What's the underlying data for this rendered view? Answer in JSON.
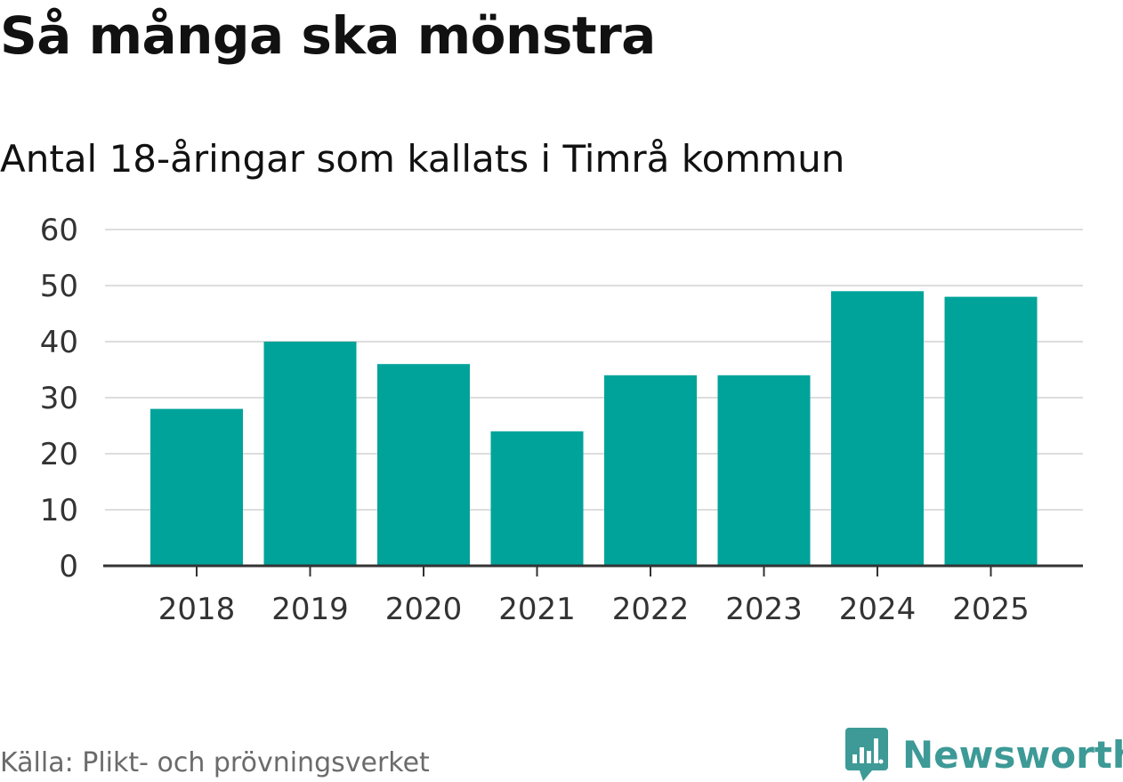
{
  "title": "Så många ska mönstra",
  "subtitle": "Antal 18-åringar som kallats i Timrå kommun",
  "source": "Källa: Plikt- och prövningsverket",
  "brand": {
    "name": "Newsworthy",
    "icon": "newsworthy-logo-icon"
  },
  "colors": {
    "bar": "#00a39a",
    "grid": "#dddddd",
    "axis": "#333333",
    "brand": "#3d9a96"
  },
  "chart_data": {
    "type": "bar",
    "title": "Så många ska mönstra",
    "subtitle": "Antal 18-åringar som kallats i Timrå kommun",
    "xlabel": "",
    "ylabel": "",
    "categories": [
      "2018",
      "2019",
      "2020",
      "2021",
      "2022",
      "2023",
      "2024",
      "2025"
    ],
    "values": [
      28,
      40,
      36,
      24,
      34,
      34,
      49,
      48
    ],
    "ylim": [
      0,
      60
    ],
    "yticks": [
      "0",
      "10",
      "20",
      "30",
      "40",
      "50",
      "60"
    ],
    "grid": true,
    "legend": "none"
  }
}
